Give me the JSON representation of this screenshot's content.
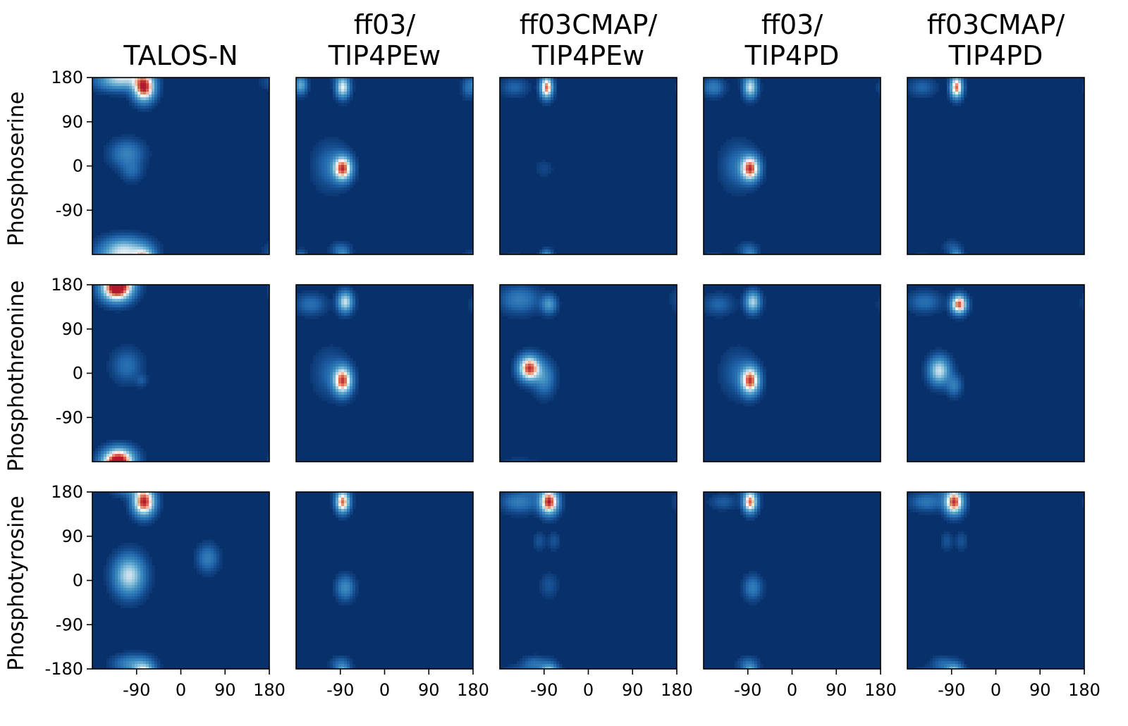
{
  "chart_data": {
    "type": "heatmap",
    "column_titles": [
      [
        "TALOS-N"
      ],
      [
        "ff03/",
        "TIP4PEw"
      ],
      [
        "ff03CMAP/",
        "TIP4PEw"
      ],
      [
        "ff03/",
        "TIP4PD"
      ],
      [
        "ff03CMAP/",
        "TIP4PD"
      ]
    ],
    "row_labels": [
      "Phosphoserine",
      "Phosphothreonine",
      "Phosphotyrosine"
    ],
    "x_range": [
      -180,
      180
    ],
    "y_range": [
      -180,
      180
    ],
    "x_ticks": [
      -90,
      0,
      90,
      180
    ],
    "y_ticks_upper_rows": [
      180,
      90,
      0,
      -90
    ],
    "y_ticks_bottom_row": [
      180,
      90,
      0,
      -90,
      -180
    ],
    "colormap": {
      "low": "#08306b",
      "mid": "#f7f7f7",
      "high": "#b2182b"
    },
    "panels": [
      [
        {
          "peaks": [
            {
              "x": -75,
              "y": 160,
              "sx": 14,
              "sy": 18,
              "a": 1.0
            },
            {
              "x": -130,
              "y": 170,
              "sx": 30,
              "sy": 12,
              "a": 0.25
            },
            {
              "x": -110,
              "y": 25,
              "sx": 22,
              "sy": 18,
              "a": 0.22
            },
            {
              "x": -100,
              "y": -10,
              "sx": 14,
              "sy": 14,
              "a": 0.12
            },
            {
              "x": -115,
              "y": -170,
              "sx": 30,
              "sy": 16,
              "a": 0.5
            }
          ]
        },
        {
          "peaks": [
            {
              "x": -85,
              "y": 160,
              "sx": 9,
              "sy": 14,
              "a": 0.6
            },
            {
              "x": -170,
              "y": 165,
              "sx": 8,
              "sy": 12,
              "a": 0.35
            },
            {
              "x": -85,
              "y": -5,
              "sx": 12,
              "sy": 16,
              "a": 0.9
            },
            {
              "x": -110,
              "y": 0,
              "sx": 22,
              "sy": 30,
              "a": 0.15
            },
            {
              "x": 170,
              "y": 160,
              "sx": 8,
              "sy": 14,
              "a": 0.15
            },
            {
              "x": -90,
              "y": -170,
              "sx": 14,
              "sy": 10,
              "a": 0.12
            }
          ]
        },
        {
          "peaks": [
            {
              "x": -85,
              "y": 160,
              "sx": 8,
              "sy": 14,
              "a": 0.85
            },
            {
              "x": -150,
              "y": 160,
              "sx": 18,
              "sy": 12,
              "a": 0.12
            },
            {
              "x": -90,
              "y": -5,
              "sx": 12,
              "sy": 12,
              "a": 0.05
            }
          ]
        },
        {
          "peaks": [
            {
              "x": -85,
              "y": 160,
              "sx": 9,
              "sy": 14,
              "a": 0.55
            },
            {
              "x": -160,
              "y": 160,
              "sx": 14,
              "sy": 12,
              "a": 0.2
            },
            {
              "x": -85,
              "y": -5,
              "sx": 12,
              "sy": 16,
              "a": 0.9
            },
            {
              "x": -110,
              "y": 0,
              "sx": 22,
              "sy": 30,
              "a": 0.15
            },
            {
              "x": -90,
              "y": -170,
              "sx": 14,
              "sy": 10,
              "a": 0.1
            }
          ]
        },
        {
          "peaks": [
            {
              "x": -80,
              "y": 160,
              "sx": 8,
              "sy": 14,
              "a": 0.85
            },
            {
              "x": -150,
              "y": 160,
              "sx": 18,
              "sy": 12,
              "a": 0.12
            },
            {
              "x": -90,
              "y": -165,
              "sx": 12,
              "sy": 10,
              "a": 0.08
            }
          ]
        }
      ],
      [
        {
          "peaks": [
            {
              "x": -130,
              "y": 170,
              "sx": 20,
              "sy": 16,
              "a": 1.0
            },
            {
              "x": -110,
              "y": 15,
              "sx": 20,
              "sy": 22,
              "a": 0.15
            },
            {
              "x": -80,
              "y": -15,
              "sx": 8,
              "sy": 8,
              "a": 0.08
            },
            {
              "x": -125,
              "y": -170,
              "sx": 20,
              "sy": 14,
              "a": 0.55
            }
          ]
        },
        {
          "peaks": [
            {
              "x": -80,
              "y": 145,
              "sx": 10,
              "sy": 14,
              "a": 0.55
            },
            {
              "x": -150,
              "y": 140,
              "sx": 20,
              "sy": 14,
              "a": 0.15
            },
            {
              "x": -85,
              "y": -15,
              "sx": 12,
              "sy": 18,
              "a": 0.9
            },
            {
              "x": -110,
              "y": 0,
              "sx": 22,
              "sy": 30,
              "a": 0.12
            }
          ]
        },
        {
          "peaks": [
            {
              "x": -120,
              "y": 10,
              "sx": 14,
              "sy": 16,
              "a": 0.95
            },
            {
              "x": -90,
              "y": -10,
              "sx": 14,
              "sy": 22,
              "a": 0.25
            },
            {
              "x": -80,
              "y": 140,
              "sx": 10,
              "sy": 12,
              "a": 0.3
            },
            {
              "x": -140,
              "y": 150,
              "sx": 26,
              "sy": 18,
              "a": 0.2
            }
          ]
        },
        {
          "peaks": [
            {
              "x": -80,
              "y": 145,
              "sx": 10,
              "sy": 14,
              "a": 0.5
            },
            {
              "x": -150,
              "y": 140,
              "sx": 20,
              "sy": 14,
              "a": 0.12
            },
            {
              "x": -85,
              "y": -15,
              "sx": 12,
              "sy": 18,
              "a": 0.9
            },
            {
              "x": -110,
              "y": 0,
              "sx": 22,
              "sy": 30,
              "a": 0.12
            }
          ]
        },
        {
          "peaks": [
            {
              "x": -75,
              "y": 140,
              "sx": 10,
              "sy": 12,
              "a": 0.9
            },
            {
              "x": -145,
              "y": 145,
              "sx": 22,
              "sy": 14,
              "a": 0.15
            },
            {
              "x": -115,
              "y": 5,
              "sx": 14,
              "sy": 18,
              "a": 0.55
            },
            {
              "x": -85,
              "y": -25,
              "sx": 10,
              "sy": 14,
              "a": 0.2
            }
          ]
        }
      ],
      [
        {
          "peaks": [
            {
              "x": -75,
              "y": 160,
              "sx": 14,
              "sy": 18,
              "a": 1.0
            },
            {
              "x": -105,
              "y": 10,
              "sx": 20,
              "sy": 26,
              "a": 0.55
            },
            {
              "x": 55,
              "y": 45,
              "sx": 14,
              "sy": 18,
              "a": 0.2
            },
            {
              "x": -100,
              "y": -170,
              "sx": 24,
              "sy": 12,
              "a": 0.25
            }
          ]
        },
        {
          "peaks": [
            {
              "x": -85,
              "y": 160,
              "sx": 9,
              "sy": 14,
              "a": 0.85
            },
            {
              "x": -80,
              "y": -15,
              "sx": 12,
              "sy": 16,
              "a": 0.25
            },
            {
              "x": -90,
              "y": -170,
              "sx": 14,
              "sy": 10,
              "a": 0.12
            }
          ]
        },
        {
          "peaks": [
            {
              "x": -80,
              "y": 160,
              "sx": 12,
              "sy": 16,
              "a": 1.0
            },
            {
              "x": -140,
              "y": 160,
              "sx": 24,
              "sy": 14,
              "a": 0.2
            },
            {
              "x": -100,
              "y": 80,
              "sx": 8,
              "sy": 12,
              "a": 0.08
            },
            {
              "x": -70,
              "y": 80,
              "sx": 8,
              "sy": 12,
              "a": 0.08
            },
            {
              "x": -80,
              "y": -10,
              "sx": 12,
              "sy": 16,
              "a": 0.08
            },
            {
              "x": -110,
              "y": -170,
              "sx": 16,
              "sy": 10,
              "a": 0.15
            }
          ]
        },
        {
          "peaks": [
            {
              "x": -85,
              "y": 160,
              "sx": 9,
              "sy": 14,
              "a": 0.85
            },
            {
              "x": -140,
              "y": 160,
              "sx": 18,
              "sy": 10,
              "a": 0.1
            },
            {
              "x": -80,
              "y": -15,
              "sx": 12,
              "sy": 16,
              "a": 0.2
            },
            {
              "x": -90,
              "y": -170,
              "sx": 14,
              "sy": 10,
              "a": 0.12
            }
          ]
        },
        {
          "peaks": [
            {
              "x": -85,
              "y": 160,
              "sx": 12,
              "sy": 16,
              "a": 0.95
            },
            {
              "x": -140,
              "y": 160,
              "sx": 22,
              "sy": 12,
              "a": 0.18
            },
            {
              "x": -100,
              "y": 80,
              "sx": 8,
              "sy": 12,
              "a": 0.08
            },
            {
              "x": -70,
              "y": 80,
              "sx": 8,
              "sy": 12,
              "a": 0.08
            },
            {
              "x": -110,
              "y": -170,
              "sx": 14,
              "sy": 10,
              "a": 0.12
            }
          ]
        }
      ]
    ]
  }
}
